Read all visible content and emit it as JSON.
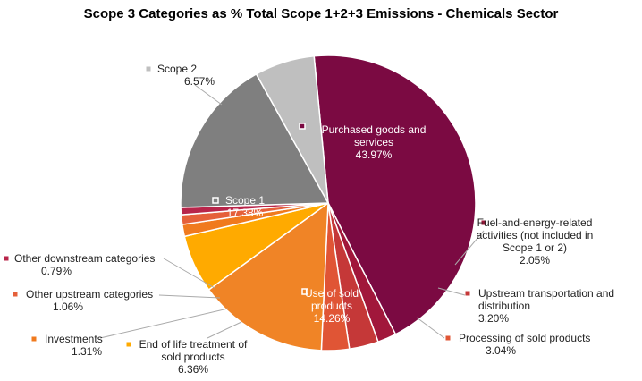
{
  "chart_data": {
    "type": "pie",
    "title": "Scope 3 Categories as % Total Scope 1+2+3 Emissions - Chemicals Sector",
    "slices": [
      {
        "label": "Purchased goods and services",
        "label_lines": [
          "Purchased goods and",
          "services"
        ],
        "value_text": "43.97%",
        "value": 43.97,
        "color": "#7B0A42"
      },
      {
        "label": "Fuel-and-energy-related activities (not included in Scope 1 or 2)",
        "label_lines": [
          "Fuel-and-energy-related",
          "activities (not included in",
          "Scope 1 or 2)"
        ],
        "value_text": "2.05%",
        "value": 2.05,
        "color": "#A1173B"
      },
      {
        "label": "Upstream transportation and distribution",
        "label_lines": [
          "Upstream transportation and",
          "distribution"
        ],
        "value_text": "3.20%",
        "value": 3.2,
        "color": "#C53838"
      },
      {
        "label": "Processing of sold products",
        "label_lines": [
          "Processing of sold products"
        ],
        "value_text": "3.04%",
        "value": 3.04,
        "color": "#E05535"
      },
      {
        "label": "Use of sold products",
        "label_lines": [
          "Use of sold",
          "products"
        ],
        "value_text": "14.26%",
        "value": 14.26,
        "color": "#F08426"
      },
      {
        "label": "End of life treatment of sold products",
        "label_lines": [
          "End of life treatment of",
          "sold products"
        ],
        "value_text": "6.36%",
        "value": 6.36,
        "color": "#FFAA00"
      },
      {
        "label": "Investments",
        "label_lines": [
          "Investments"
        ],
        "value_text": "1.31%",
        "value": 1.31,
        "color": "#F07A1E"
      },
      {
        "label": "Other upstream categories",
        "label_lines": [
          "Other upstream categories"
        ],
        "value_text": "1.06%",
        "value": 1.06,
        "color": "#E5603A"
      },
      {
        "label": "Other downstream categories",
        "label_lines": [
          "Other downstream categories"
        ],
        "value_text": "0.79%",
        "value": 0.79,
        "color": "#B8254A"
      },
      {
        "label": "Scope 1",
        "label_lines": [
          "Scope 1"
        ],
        "value_text": "17.38%",
        "value": 17.38,
        "color": "#7F7F7F"
      },
      {
        "label": "Scope 2",
        "label_lines": [
          "Scope 2"
        ],
        "value_text": "6.57%",
        "value": 6.57,
        "color": "#BFBFBF"
      }
    ]
  }
}
